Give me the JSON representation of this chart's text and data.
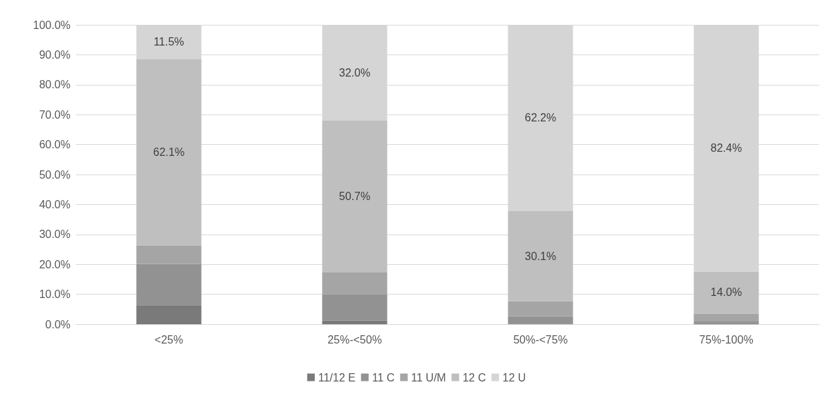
{
  "chart_data": {
    "type": "bar",
    "stacked": true,
    "categories": [
      "<25%",
      "25%-<50%",
      "50%-<75%",
      "75%-100%"
    ],
    "ylim": [
      0,
      100
    ],
    "yticks": [
      {
        "value": 0,
        "label": "0.0%"
      },
      {
        "value": 10,
        "label": "10.0%"
      },
      {
        "value": 20,
        "label": "20.0%"
      },
      {
        "value": 30,
        "label": "30.0%"
      },
      {
        "value": 40,
        "label": "40.0%"
      },
      {
        "value": 50,
        "label": "50.0%"
      },
      {
        "value": 60,
        "label": "60.0%"
      },
      {
        "value": 70,
        "label": "70.0%"
      },
      {
        "value": 80,
        "label": "80.0%"
      },
      {
        "value": 90,
        "label": "90.0%"
      },
      {
        "value": 100,
        "label": "100.0%"
      }
    ],
    "grid": "y",
    "legend": "bottom",
    "series": [
      {
        "name": "11/12 E",
        "color": "#7a7a7a",
        "values": [
          6.4,
          1.2,
          0.2,
          0.3
        ]
      },
      {
        "name": "11 C",
        "color": "#929292",
        "values": [
          13.7,
          8.8,
          2.4,
          0.6
        ]
      },
      {
        "name": "11 U/M",
        "color": "#a5a5a5",
        "values": [
          6.3,
          7.3,
          5.1,
          2.7
        ]
      },
      {
        "name": "12 C",
        "color": "#bfbfbf",
        "values": [
          62.1,
          50.7,
          30.1,
          14.0
        ],
        "value_labels": [
          "62.1%",
          "50.7%",
          "30.1%",
          "14.0%"
        ]
      },
      {
        "name": "12 U",
        "color": "#d5d5d5",
        "values": [
          11.5,
          32.0,
          62.2,
          82.4
        ],
        "value_labels": [
          "11.5%",
          "32.0%",
          "62.2%",
          "82.4%"
        ]
      }
    ]
  }
}
